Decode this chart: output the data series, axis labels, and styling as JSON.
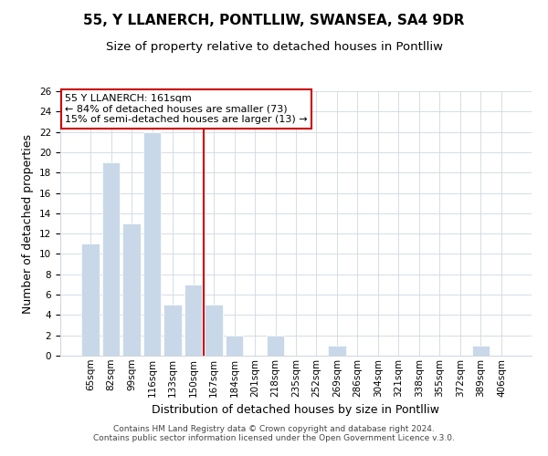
{
  "title": "55, Y LLANERCH, PONTLLIW, SWANSEA, SA4 9DR",
  "subtitle": "Size of property relative to detached houses in Pontlliw",
  "xlabel": "Distribution of detached houses by size in Pontlliw",
  "ylabel": "Number of detached properties",
  "bar_labels": [
    "65sqm",
    "82sqm",
    "99sqm",
    "116sqm",
    "133sqm",
    "150sqm",
    "167sqm",
    "184sqm",
    "201sqm",
    "218sqm",
    "235sqm",
    "252sqm",
    "269sqm",
    "286sqm",
    "304sqm",
    "321sqm",
    "338sqm",
    "355sqm",
    "372sqm",
    "389sqm",
    "406sqm"
  ],
  "bar_values": [
    11,
    19,
    13,
    22,
    5,
    7,
    5,
    2,
    0,
    2,
    0,
    0,
    1,
    0,
    0,
    0,
    0,
    0,
    0,
    1,
    0
  ],
  "bar_color": "#c8d8e8",
  "bar_edge_color": "#ffffff",
  "highlight_line_color": "#cc0000",
  "annotation_box_text": "55 Y LLANERCH: 161sqm\n← 84% of detached houses are smaller (73)\n15% of semi-detached houses are larger (13) →",
  "annotation_box_facecolor": "#ffffff",
  "annotation_box_edgecolor": "#cc0000",
  "ylim": [
    0,
    26
  ],
  "yticks": [
    0,
    2,
    4,
    6,
    8,
    10,
    12,
    14,
    16,
    18,
    20,
    22,
    24,
    26
  ],
  "footer_line1": "Contains HM Land Registry data © Crown copyright and database right 2024.",
  "footer_line2": "Contains public sector information licensed under the Open Government Licence v.3.0.",
  "background_color": "#ffffff",
  "grid_color": "#d0d8e0",
  "title_fontsize": 11,
  "subtitle_fontsize": 9.5,
  "axis_label_fontsize": 9,
  "tick_fontsize": 7.5,
  "footer_fontsize": 6.5
}
